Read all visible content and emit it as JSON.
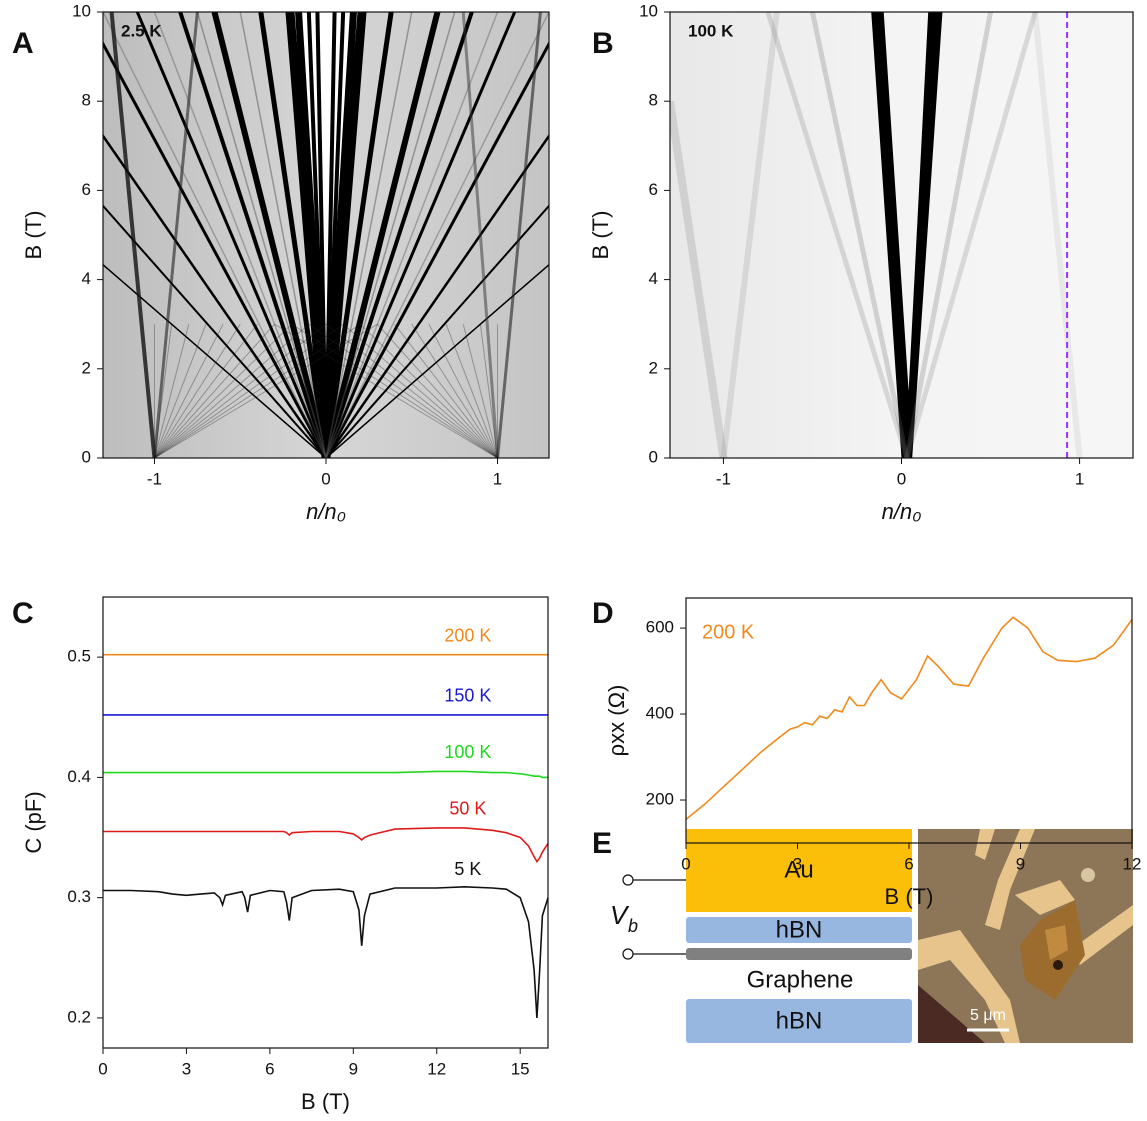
{
  "chart_data": [
    {
      "type": "heatmap",
      "panel": "A",
      "annotation": "2.5 K",
      "x_label": "n/n₀",
      "y_label": "B (T)",
      "xlim": [
        -1.3,
        1.3
      ],
      "xticks": [
        -1,
        0,
        1
      ],
      "ylim": [
        0,
        10
      ],
      "yticks": [
        0,
        2,
        4,
        6,
        8,
        10
      ]
    },
    {
      "type": "heatmap",
      "panel": "B",
      "annotation": "100 K",
      "x_label": "n/n₀",
      "y_label": "B (T)",
      "xlim": [
        -1.3,
        1.3
      ],
      "xticks": [
        -1,
        0,
        1
      ],
      "ylim": [
        0,
        10
      ],
      "yticks": [
        0,
        2,
        4,
        6,
        8,
        10
      ],
      "vline": {
        "x": 0.93,
        "color": "#9b30ff"
      }
    },
    {
      "type": "line",
      "panel": "C",
      "x_label": "B (T)",
      "y_label": "C (pF)",
      "xlim": [
        0,
        16
      ],
      "xticks": [
        0,
        3,
        6,
        9,
        12,
        15
      ],
      "ylim": [
        0.175,
        0.55
      ],
      "yticks": [
        0.2,
        0.3,
        0.4,
        0.5
      ],
      "x": [
        0,
        1,
        2,
        2.5,
        3,
        3.5,
        4,
        4.2,
        4.3,
        4.4,
        5,
        5.1,
        5.2,
        5.3,
        6,
        6.5,
        6.6,
        6.7,
        6.8,
        7.5,
        8.5,
        9,
        9.2,
        9.3,
        9.4,
        9.6,
        10.5,
        12,
        13,
        14,
        14.5,
        15,
        15.3,
        15.5,
        15.6,
        15.7,
        15.8,
        16
      ],
      "series": [
        {
          "name": "200 K",
          "color": "#f08a1c",
          "values": [
            0.502,
            0.502,
            0.502,
            0.502,
            0.502,
            0.502,
            0.502,
            0.502,
            0.502,
            0.502,
            0.502,
            0.502,
            0.502,
            0.502,
            0.502,
            0.502,
            0.502,
            0.502,
            0.502,
            0.502,
            0.502,
            0.502,
            0.502,
            0.502,
            0.502,
            0.502,
            0.502,
            0.502,
            0.502,
            0.502,
            0.502,
            0.502,
            0.502,
            0.502,
            0.502,
            0.502,
            0.502,
            0.502
          ]
        },
        {
          "name": "150 K",
          "color": "#1a1ad8",
          "values": [
            0.452,
            0.452,
            0.452,
            0.452,
            0.452,
            0.452,
            0.452,
            0.452,
            0.452,
            0.452,
            0.452,
            0.452,
            0.452,
            0.452,
            0.452,
            0.452,
            0.452,
            0.452,
            0.452,
            0.452,
            0.452,
            0.452,
            0.452,
            0.452,
            0.452,
            0.452,
            0.452,
            0.452,
            0.452,
            0.452,
            0.452,
            0.452,
            0.452,
            0.452,
            0.452,
            0.452,
            0.452,
            0.452
          ]
        },
        {
          "name": "100 K",
          "color": "#1ed81e",
          "values": [
            0.404,
            0.404,
            0.404,
            0.404,
            0.404,
            0.404,
            0.404,
            0.404,
            0.404,
            0.404,
            0.404,
            0.404,
            0.404,
            0.404,
            0.404,
            0.404,
            0.404,
            0.404,
            0.404,
            0.404,
            0.404,
            0.404,
            0.404,
            0.404,
            0.404,
            0.404,
            0.404,
            0.405,
            0.405,
            0.404,
            0.404,
            0.403,
            0.402,
            0.401,
            0.401,
            0.401,
            0.4,
            0.4
          ]
        },
        {
          "name": "50 K",
          "color": "#e01a1a",
          "values": [
            0.355,
            0.355,
            0.355,
            0.355,
            0.355,
            0.355,
            0.355,
            0.355,
            0.355,
            0.355,
            0.355,
            0.355,
            0.355,
            0.355,
            0.355,
            0.355,
            0.354,
            0.352,
            0.354,
            0.355,
            0.355,
            0.353,
            0.35,
            0.348,
            0.35,
            0.352,
            0.357,
            0.358,
            0.358,
            0.356,
            0.354,
            0.35,
            0.343,
            0.334,
            0.33,
            0.333,
            0.338,
            0.345
          ]
        },
        {
          "name": "5 K",
          "color": "#111111",
          "values": [
            0.306,
            0.306,
            0.305,
            0.303,
            0.302,
            0.303,
            0.304,
            0.3,
            0.294,
            0.302,
            0.305,
            0.3,
            0.288,
            0.302,
            0.306,
            0.305,
            0.296,
            0.281,
            0.3,
            0.306,
            0.307,
            0.305,
            0.29,
            0.26,
            0.285,
            0.303,
            0.308,
            0.308,
            0.309,
            0.308,
            0.307,
            0.3,
            0.28,
            0.24,
            0.2,
            0.24,
            0.285,
            0.3
          ]
        }
      ]
    },
    {
      "type": "line",
      "panel": "D",
      "annotation": "200 K",
      "x_label": "B (T)",
      "y_label": "ρxx (Ω)",
      "xlim": [
        0,
        12
      ],
      "xticks": [
        0,
        3,
        6,
        9,
        12
      ],
      "ylim": [
        100,
        670
      ],
      "yticks": [
        200,
        400,
        600
      ],
      "x": [
        0,
        0.5,
        1,
        1.5,
        2,
        2.5,
        2.8,
        3,
        3.2,
        3.4,
        3.6,
        3.8,
        4,
        4.2,
        4.4,
        4.6,
        4.8,
        5,
        5.25,
        5.5,
        5.8,
        6.2,
        6.5,
        6.8,
        7.2,
        7.6,
        8,
        8.5,
        8.8,
        9.2,
        9.6,
        10,
        10.5,
        11,
        11.5,
        12
      ],
      "series": [
        {
          "name": "200 K",
          "color": "#f08a1c",
          "values": [
            155,
            190,
            230,
            270,
            310,
            345,
            365,
            370,
            380,
            375,
            395,
            390,
            410,
            405,
            440,
            420,
            420,
            450,
            480,
            450,
            435,
            480,
            535,
            510,
            470,
            465,
            530,
            600,
            625,
            600,
            545,
            525,
            522,
            530,
            560,
            620
          ]
        }
      ]
    }
  ],
  "diagram": {
    "panel": "E",
    "layers": [
      "Au",
      "hBN",
      "Graphene",
      "hBN"
    ],
    "bias": {
      "symbol": "V",
      "subscript": "b"
    },
    "scale_bar": "5 μm"
  }
}
